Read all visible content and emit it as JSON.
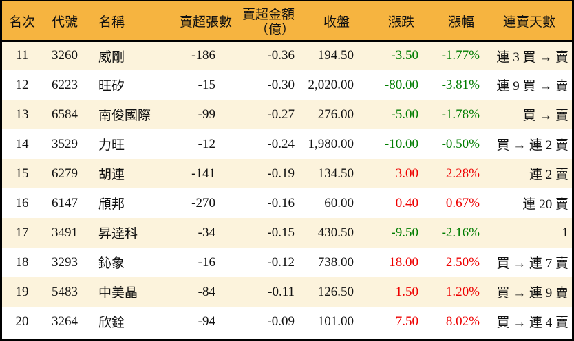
{
  "colors": {
    "header_bg": "#F6B440",
    "row_stripe": "#FCF3DC",
    "row_plain": "#FFFFFF",
    "border": "#000000",
    "up_red": "#EE0000",
    "down_green": "#007D00",
    "text": "#111111"
  },
  "chart_data": {
    "type": "table",
    "columns": [
      "名次",
      "代號",
      "名稱",
      "賣超張數",
      "賣超金額",
      "收盤",
      "漲跌",
      "漲幅",
      "連賣天數"
    ],
    "amount_unit_line": "（億）",
    "rows": [
      {
        "rank": "11",
        "code": "3260",
        "name": "威剛",
        "volume": "-186",
        "amount": "-0.36",
        "close": "194.50",
        "change": "-3.50",
        "change_pct": "-1.77%",
        "streak": "連 3 買 → 賣",
        "direction": "down"
      },
      {
        "rank": "12",
        "code": "6223",
        "name": "旺矽",
        "volume": "-15",
        "amount": "-0.30",
        "close": "2,020.00",
        "change": "-80.00",
        "change_pct": "-3.81%",
        "streak": "連 9 買 → 賣",
        "direction": "down"
      },
      {
        "rank": "13",
        "code": "6584",
        "name": "南俊國際",
        "volume": "-99",
        "amount": "-0.27",
        "close": "276.00",
        "change": "-5.00",
        "change_pct": "-1.78%",
        "streak": "買 → 賣",
        "direction": "down"
      },
      {
        "rank": "14",
        "code": "3529",
        "name": "力旺",
        "volume": "-12",
        "amount": "-0.24",
        "close": "1,980.00",
        "change": "-10.00",
        "change_pct": "-0.50%",
        "streak": "買 → 連 2 賣",
        "direction": "down"
      },
      {
        "rank": "15",
        "code": "6279",
        "name": "胡連",
        "volume": "-141",
        "amount": "-0.19",
        "close": "134.50",
        "change": "3.00",
        "change_pct": "2.28%",
        "streak": "連 2 賣",
        "direction": "up"
      },
      {
        "rank": "16",
        "code": "6147",
        "name": "頎邦",
        "volume": "-270",
        "amount": "-0.16",
        "close": "60.00",
        "change": "0.40",
        "change_pct": "0.67%",
        "streak": "連 20 賣",
        "direction": "up"
      },
      {
        "rank": "17",
        "code": "3491",
        "name": "昇達科",
        "volume": "-34",
        "amount": "-0.15",
        "close": "430.50",
        "change": "-9.50",
        "change_pct": "-2.16%",
        "streak": "1",
        "direction": "down"
      },
      {
        "rank": "18",
        "code": "3293",
        "name": "鈊象",
        "volume": "-16",
        "amount": "-0.12",
        "close": "738.00",
        "change": "18.00",
        "change_pct": "2.50%",
        "streak": "買 → 連 7 賣",
        "direction": "up"
      },
      {
        "rank": "19",
        "code": "5483",
        "name": "中美晶",
        "volume": "-84",
        "amount": "-0.11",
        "close": "126.50",
        "change": "1.50",
        "change_pct": "1.20%",
        "streak": "買 → 連 9 賣",
        "direction": "up"
      },
      {
        "rank": "20",
        "code": "3264",
        "name": "欣銓",
        "volume": "-94",
        "amount": "-0.09",
        "close": "101.00",
        "change": "7.50",
        "change_pct": "8.02%",
        "streak": "買 → 連 4 賣",
        "direction": "up"
      }
    ]
  }
}
